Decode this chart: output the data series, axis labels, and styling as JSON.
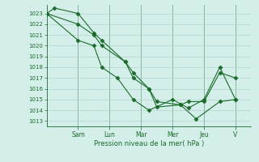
{
  "background_color": "#d4eeea",
  "grid_color": "#a8ccc8",
  "line_color": "#1a6b2a",
  "marker_color": "#1a6b2a",
  "xlabel": "Pression niveau de la mer( hPa )",
  "ylim": [
    1012.5,
    1023.8
  ],
  "yticks": [
    1013,
    1014,
    1015,
    1016,
    1017,
    1018,
    1019,
    1020,
    1021,
    1022,
    1023
  ],
  "day_labels": [
    "Sam",
    "Lun",
    "Mar",
    "Mer",
    "Jeu",
    "V"
  ],
  "day_positions": [
    2.0,
    4.0,
    6.0,
    8.0,
    10.0,
    12.0
  ],
  "xlim": [
    0,
    13
  ],
  "series1_x": [
    0,
    0.5,
    2,
    3,
    3.5,
    5,
    5.5,
    6.5,
    7,
    8.5,
    9.5,
    11,
    12
  ],
  "series1_y": [
    1023,
    1023.5,
    1023,
    1021.2,
    1020.5,
    1018.5,
    1017,
    1016,
    1014.3,
    1014.5,
    1013.2,
    1014.8,
    1015
  ],
  "series2_x": [
    0,
    2,
    3,
    3.5,
    5,
    5.5,
    6.5,
    7,
    8.5,
    9,
    10,
    11,
    12
  ],
  "series2_y": [
    1023,
    1022,
    1021,
    1020,
    1018.5,
    1017.5,
    1016,
    1014.8,
    1014.5,
    1014.8,
    1014.8,
    1017.5,
    1017
  ],
  "series3_x": [
    0,
    2,
    3,
    3.5,
    4.5,
    5.5,
    6.5,
    8,
    9,
    10,
    11,
    12
  ],
  "series3_y": [
    1023,
    1020.5,
    1020,
    1018,
    1017,
    1015,
    1014,
    1015,
    1014.2,
    1015,
    1018,
    1015
  ]
}
